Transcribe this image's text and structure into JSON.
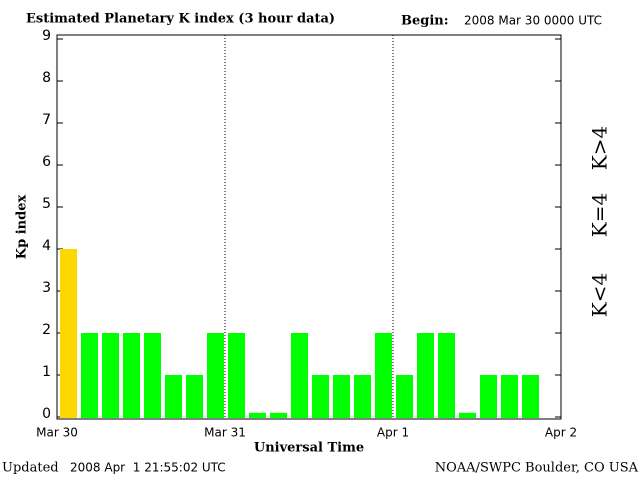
{
  "chart_data": {
    "type": "bar",
    "title": "Estimated Planetary K index (3 hour data)",
    "begin_label": "Begin:",
    "begin_time": "2008 Mar 30 0000 UTC",
    "y_label": "Kp index",
    "x_label": "Universal Time",
    "updated_label": "Updated",
    "updated_time": "2008 Apr  1 21:55:02 UTC",
    "source": "NOAA/SWPC Boulder, CO USA",
    "values": [
      4,
      2,
      2,
      2,
      2,
      1,
      1,
      2,
      2,
      0.1,
      0.1,
      2,
      1,
      1,
      1,
      2,
      1,
      2,
      2,
      0.1,
      1,
      1,
      1,
      null
    ],
    "xticks": [
      "Mar 30",
      "Mar 31",
      "Apr 1",
      "Apr 2"
    ],
    "ylim": [
      0,
      9
    ],
    "yticks": [
      0,
      1,
      2,
      3,
      4,
      5,
      6,
      7,
      8,
      9
    ],
    "threshold": 4,
    "legend": [
      {
        "name": "K<4",
        "color": "#00ff00"
      },
      {
        "name": "K=4",
        "color": "#ffd700"
      },
      {
        "name": "K>4",
        "color": "#ff2a00"
      }
    ],
    "grid": true
  }
}
